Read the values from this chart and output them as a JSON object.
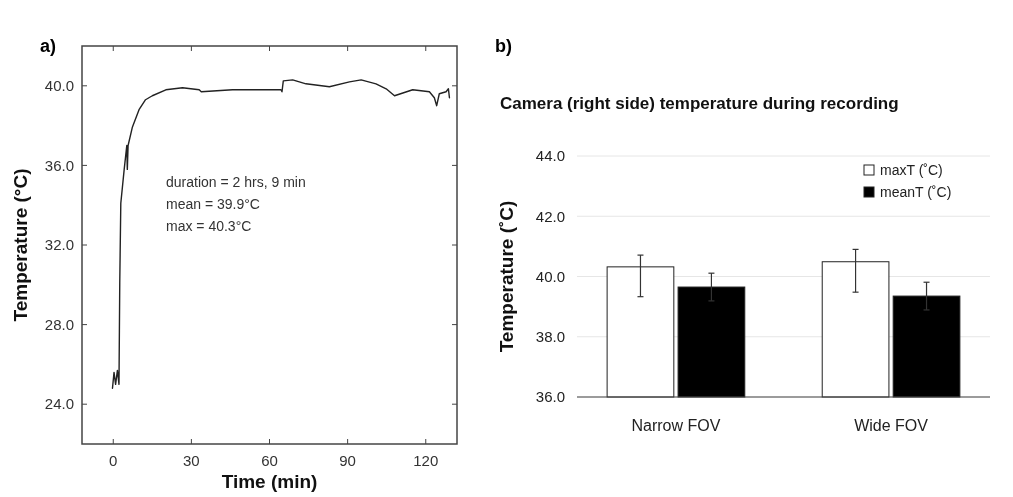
{
  "chart_data": [
    {
      "type": "line",
      "xlabel": "Time (min)",
      "ylabel": "Temperature (°C)",
      "annotations": [
        "a)",
        "duration = 2 hrs, 9 min",
        "mean = 39.9°C",
        "max = 40.3°C"
      ],
      "xlim": [
        -12,
        132
      ],
      "ylim": [
        22,
        42
      ],
      "xticks": [
        0,
        30,
        60,
        90,
        120
      ],
      "yticks": [
        {
          "value": 24,
          "label": "24.0"
        },
        {
          "value": 28,
          "label": "28.0"
        },
        {
          "value": 32,
          "label": "32.0"
        },
        {
          "value": 36,
          "label": "36.0"
        },
        {
          "value": 40,
          "label": "40.0"
        }
      ],
      "grid": false,
      "line_style": "solid",
      "series": [
        {
          "color": "#222222",
          "x": [
            -0.3,
            0.3,
            0.9,
            1.6,
            2.2,
            2.5,
            2.9,
            4.2,
            5.2,
            5.4,
            5.7,
            7.3,
            9.9,
            12.4,
            15.0,
            20.2,
            26.6,
            33.0,
            33.8,
            45.8,
            58.6,
            64.4,
            64.8,
            65.3,
            68.9,
            74.0,
            83.0,
            90.7,
            95.2,
            100.9,
            104.8,
            108.0,
            115.0,
            121.4,
            123.3,
            124.2,
            125.2,
            127.8,
            128.7,
            129.1
          ],
          "values": [
            24.8,
            25.6,
            25.0,
            25.7,
            25.0,
            30.1,
            34.1,
            35.8,
            37.0,
            35.8,
            37.0,
            37.9,
            38.8,
            39.3,
            39.5,
            39.8,
            39.9,
            39.8,
            39.7,
            39.8,
            39.8,
            39.8,
            39.7,
            40.25,
            40.3,
            40.1,
            39.95,
            40.2,
            40.3,
            40.1,
            39.85,
            39.5,
            39.8,
            39.7,
            39.4,
            39.0,
            39.6,
            39.7,
            39.85,
            39.4
          ]
        }
      ]
    },
    {
      "type": "bar",
      "title": "Camera (right side) temperature during recording",
      "ylabel": "Temperature (˚C)",
      "annotations": [
        "b)"
      ],
      "categories": [
        "Narrow FOV",
        "Wide FOV"
      ],
      "ylim": [
        36,
        44
      ],
      "yticks": [
        {
          "value": 36,
          "label": "36.0"
        },
        {
          "value": 38,
          "label": "38.0"
        },
        {
          "value": 40,
          "label": "40.0"
        },
        {
          "value": 42,
          "label": "42.0"
        },
        {
          "value": 44,
          "label": "44.0"
        }
      ],
      "grid": "y",
      "legend": "top right",
      "series": [
        {
          "name": "maxT (˚C)",
          "color": "#ffffff",
          "values": [
            40.32,
            40.49
          ],
          "errors": [
            [
              39.33,
              40.71
            ],
            [
              39.48,
              40.9
            ]
          ]
        },
        {
          "name": "meanT (˚C)",
          "color": "#000000",
          "values": [
            39.65,
            39.35
          ],
          "errors": [
            0.46,
            0.46
          ]
        }
      ]
    }
  ]
}
